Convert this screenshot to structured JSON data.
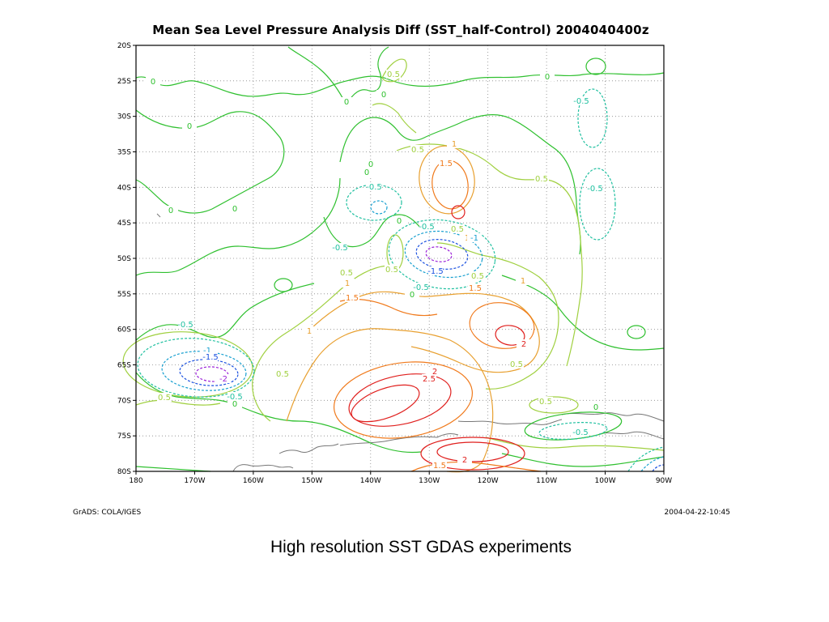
{
  "map": {
    "title": "Mean Sea Level Pressure Analysis Diff (SST_half-Control) 2004040400z",
    "lat_ticks": [
      "20S",
      "25S",
      "30S",
      "35S",
      "40S",
      "45S",
      "50S",
      "55S",
      "60S",
      "65S",
      "70S",
      "75S",
      "80S"
    ],
    "lon_ticks": [
      "180",
      "170W",
      "160W",
      "150W",
      "140W",
      "130W",
      "120W",
      "110W",
      "100W",
      "90W"
    ],
    "contour_levels": [
      "2.5",
      "2",
      "1.5",
      "1",
      "0.5",
      "0",
      "-0.5",
      "-1",
      "-1.5",
      "-2"
    ],
    "level_colors": {
      "2.5": "#e0201e",
      "2": "#e0201e",
      "1.5": "#f07a1c",
      "1": "#e8a030",
      "0.5": "#a0d040",
      "0": "#2fc02f",
      "-0.5": "#20c0a0",
      "-1": "#18a0d0",
      "-1.5": "#1a50e0",
      "-2": "#9a20d8"
    },
    "land_color": "#777777"
  },
  "footer": {
    "left": "GrADS: COLA/IGES",
    "right": "2004-04-22-10:45"
  },
  "caption": "High resolution  SST GDAS experiments"
}
